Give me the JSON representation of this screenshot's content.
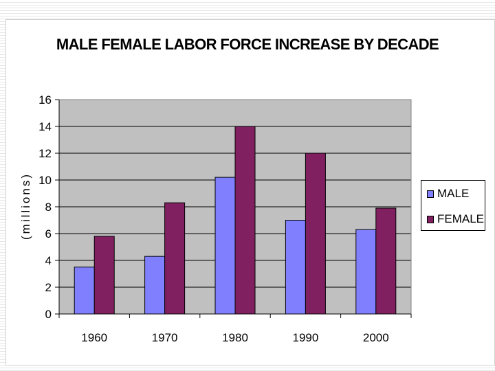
{
  "chart_data": {
    "type": "bar",
    "title": "MALE FEMALE LABOR FORCE INCREASE BY DECADE",
    "xlabel": "",
    "ylabel": "(millions)",
    "categories": [
      "1960",
      "1970",
      "1980",
      "1990",
      "2000"
    ],
    "series": [
      {
        "name": "MALE",
        "color": "#8080ff",
        "values": [
          3.5,
          4.3,
          10.2,
          7.0,
          6.3
        ]
      },
      {
        "name": "FEMALE",
        "color": "#802060",
        "values": [
          5.8,
          8.3,
          14.0,
          12.0,
          7.9
        ]
      }
    ],
    "ylim": [
      0,
      16
    ],
    "yticks": [
      "0",
      "2",
      "4",
      "6",
      "8",
      "10",
      "12",
      "14",
      "16"
    ],
    "grid": true,
    "legend_position": "right"
  }
}
